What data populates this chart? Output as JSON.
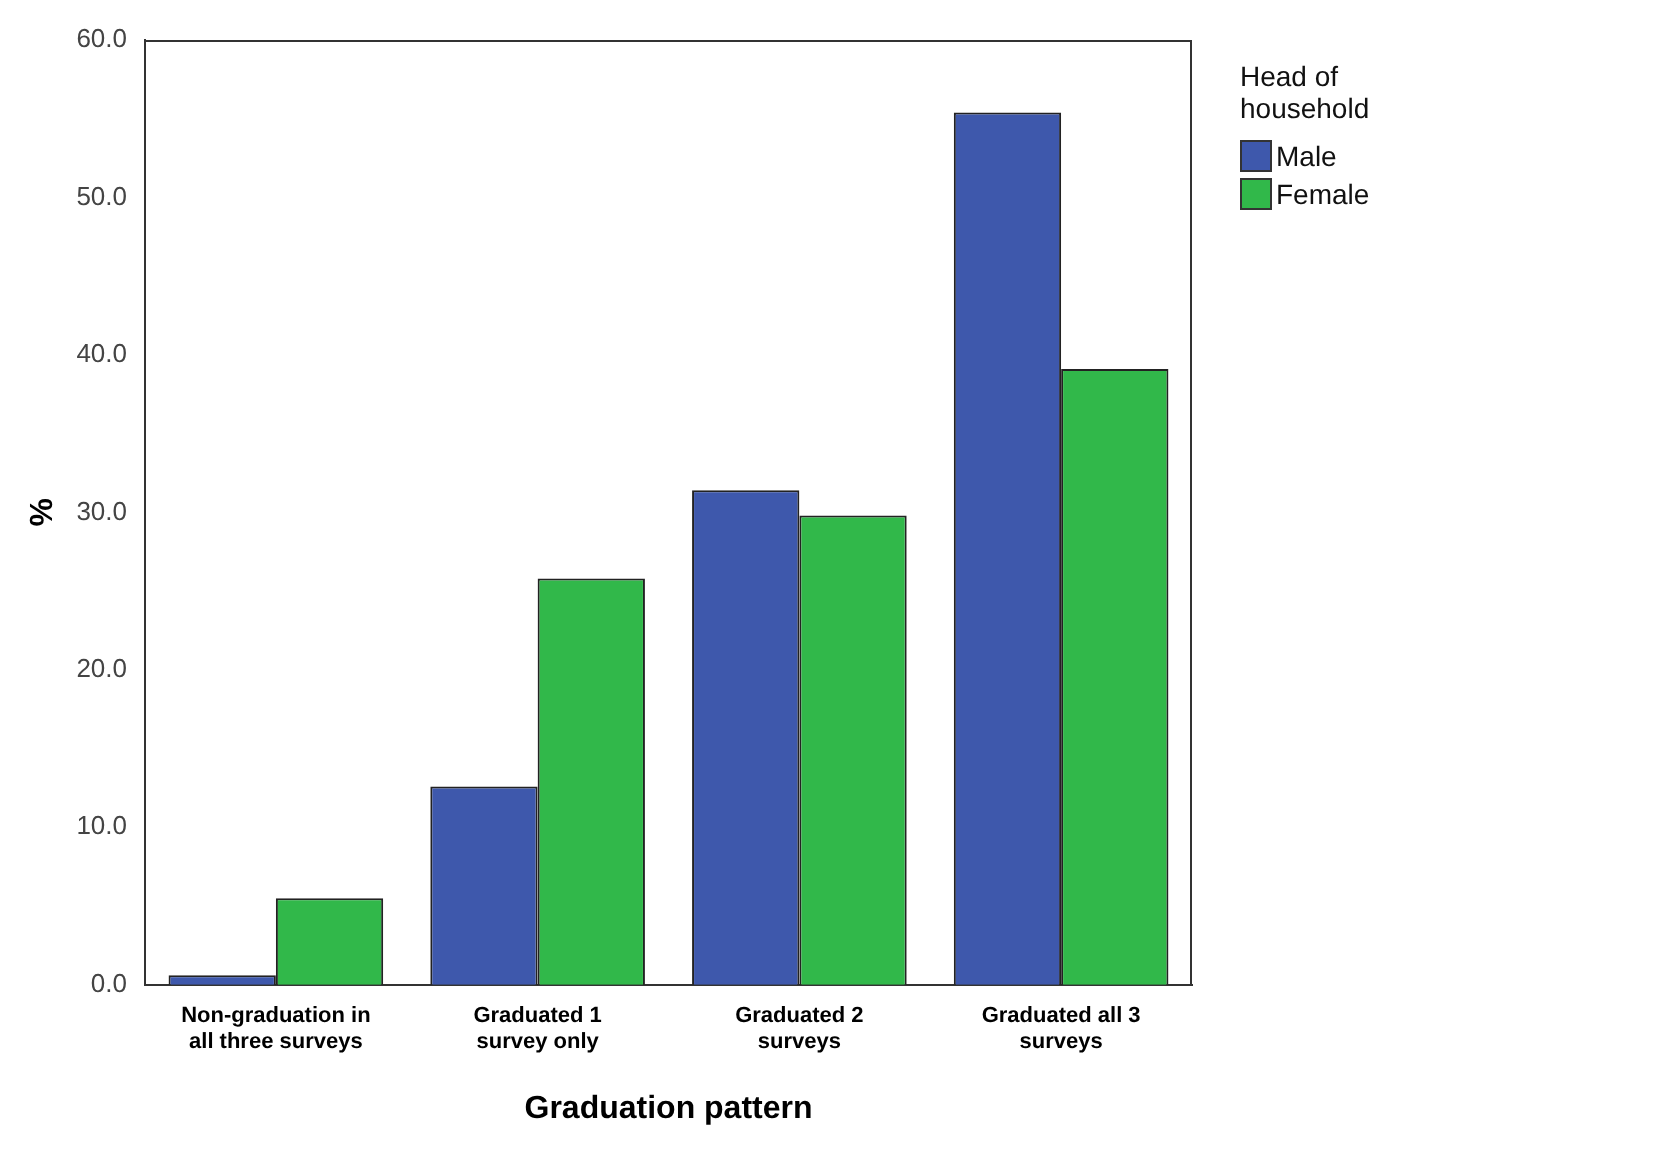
{
  "chart_data": {
    "type": "bar",
    "xlabel": "Graduation pattern",
    "ylabel": "%",
    "legend_title": "Head of household",
    "categories": [
      "Non-graduation in all three surveys",
      "Graduated 1 survey only",
      "Graduated 2 surveys",
      "Graduated all 3 surveys"
    ],
    "series": [
      {
        "name": "Male",
        "color": "#3e58ac",
        "values": [
          0.6,
          12.6,
          31.4,
          55.4
        ]
      },
      {
        "name": "Female",
        "color": "#31b84a",
        "values": [
          5.5,
          25.8,
          29.8,
          39.1
        ]
      }
    ],
    "ylim": [
      0,
      60
    ],
    "yticks": [
      {
        "value": 0,
        "label": "0.0"
      },
      {
        "value": 10,
        "label": "10.0"
      },
      {
        "value": 20,
        "label": "20.0"
      },
      {
        "value": 30,
        "label": "30.0"
      },
      {
        "value": 40,
        "label": "40.0"
      },
      {
        "value": 50,
        "label": "50.0"
      },
      {
        "value": 60,
        "label": "60.0"
      }
    ],
    "grid": false,
    "legend": "top right"
  }
}
